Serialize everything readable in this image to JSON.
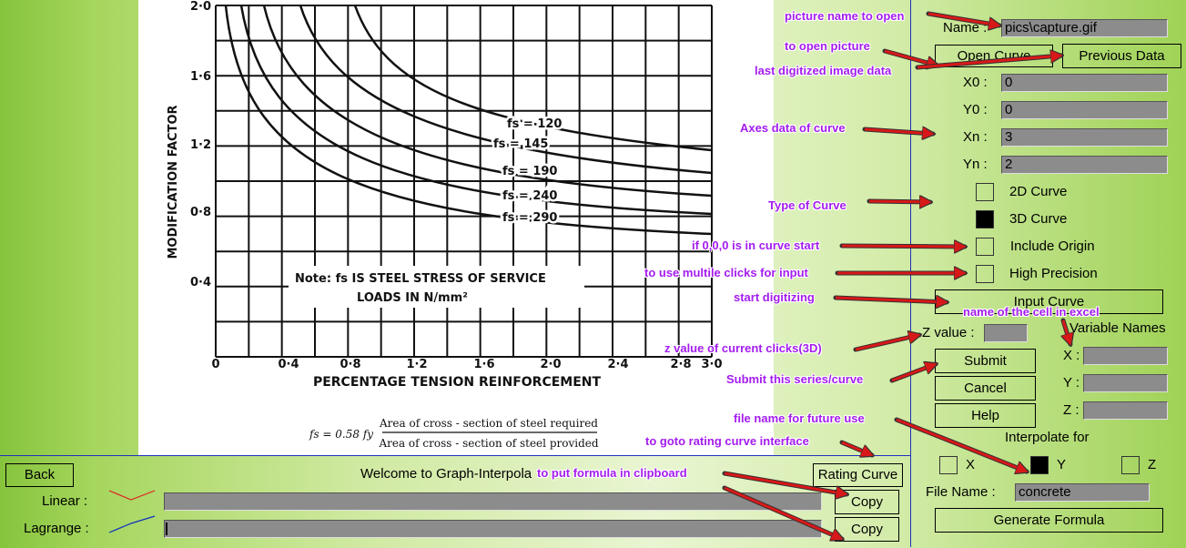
{
  "form": {
    "name_label": "Name :",
    "name_value": "pics\\capture.gif",
    "open_curve": "Open Curve",
    "previous_data": "Previous Data",
    "x0_label": "X0 :",
    "x0": 0,
    "y0_label": "Y0 :",
    "y0": 0,
    "xn_label": "Xn :",
    "xn": 3,
    "yn_label": "Yn :",
    "yn": 2,
    "curve_2d": "2D Curve",
    "curve_3d": "3D Curve",
    "include_origin": "Include Origin",
    "high_precision": "High Precision",
    "input_curve": "Input Curve",
    "variable_names": "Variable Names",
    "z_value_label": "Z value :",
    "var_x": "X :",
    "var_y": "Y :",
    "var_z": "Z :",
    "submit": "Submit",
    "cancel": "Cancel",
    "help": "Help",
    "interpolate_for": "Interpolate for",
    "interp_x": "X",
    "interp_y": "Y",
    "interp_z": "Z",
    "file_name_label": "File Name :",
    "file_name": "concrete",
    "generate_formula": "Generate Formula"
  },
  "bottom": {
    "back": "Back",
    "welcome": "Welcome to Graph-Interpola",
    "rating_curve": "Rating Curve",
    "linear_label": "Linear :",
    "lagrange_label": "Lagrange :",
    "copy_linear": "Copy",
    "copy_lagrange": "Copy"
  },
  "annotations": [
    "picture name to open",
    "to open picture",
    "last digitized image data",
    "Axes data of curve",
    "Type of Curve",
    "if 0,0,0 is in curve start",
    "to use multile clicks for input",
    "start digitizing",
    "name of the cell in excel",
    "z value of current clicks(3D)",
    "Submit this series/curve",
    "file name for future use",
    "to goto rating curve interface",
    "to put formula in clipboard"
  ],
  "picture": {
    "y_axis_label": "MODIFICATION FACTOR",
    "x_axis_label": "PERCENTAGE TENSION REINFORCEMENT",
    "y_ticks": [
      "2·0",
      "1·6",
      "1·2",
      "0·8",
      "0·4"
    ],
    "x_ticks": [
      "0",
      "0·4",
      "0·8",
      "1·2",
      "1·6",
      "2·0",
      "2·4",
      "2·8",
      "3·0"
    ],
    "curve_labels": [
      "fs = 120",
      "fs = 145",
      "fs = 190",
      "fs = 240",
      "fs = 290"
    ],
    "note_line1": "Note: fs IS STEEL STRESS OF SERVICE",
    "note_line2": "LOADS IN N/mm²",
    "formula_lhs": "fs = 0.58 fy",
    "formula_numerator": "Area of cross - section of steel required",
    "formula_denominator": "Area of cross - section of steel provided"
  }
}
